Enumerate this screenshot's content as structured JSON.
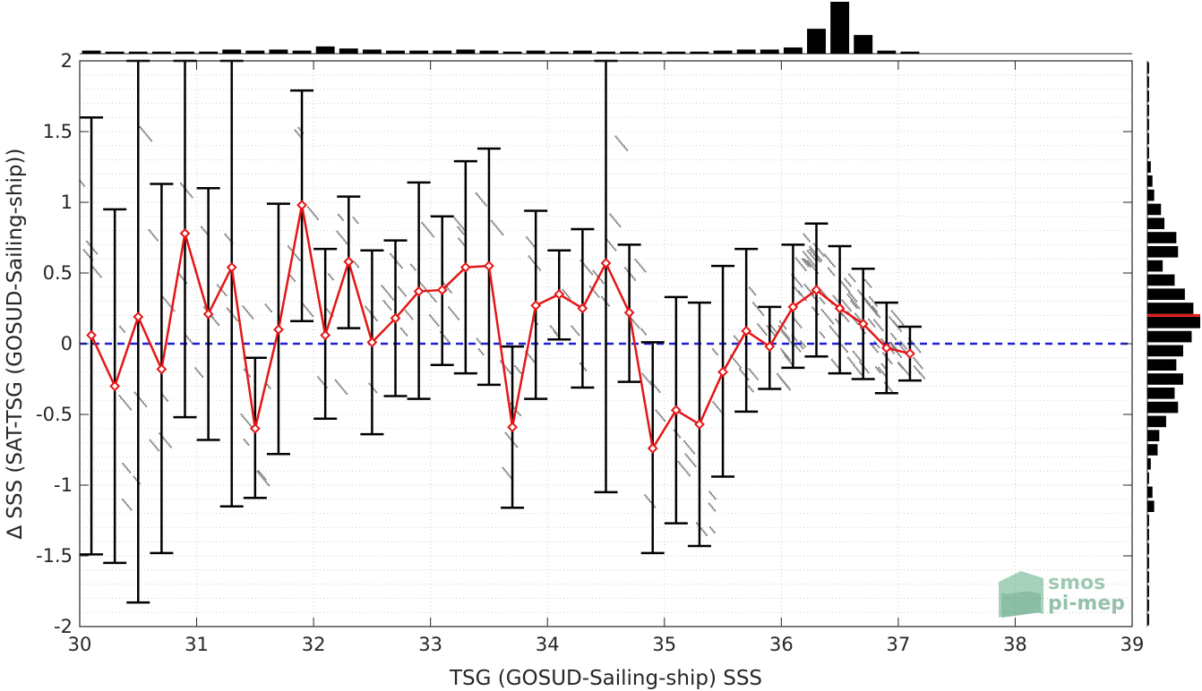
{
  "chart_data": {
    "type": "scatter",
    "xlabel": "TSG (GOSUD-Sailing-ship) SSS",
    "ylabel": "∆ SSS (SAT-TSG (GOSUD-Sailing-ship))",
    "xlim": [
      30,
      39
    ],
    "ylim": [
      -2,
      2
    ],
    "x_ticks": [
      "30",
      "31",
      "32",
      "33",
      "34",
      "35",
      "36",
      "37",
      "38",
      "39"
    ],
    "y_ticks": [
      "-2",
      "-1.5",
      "-1",
      "-0.5",
      "0",
      "0.5",
      "1",
      "1.5",
      "2"
    ],
    "grid": "dotted",
    "zero_line": {
      "y": 0,
      "style": "dashed",
      "color": "#1f1fd6"
    },
    "binned_stats": {
      "x": [
        30.1,
        30.3,
        30.5,
        30.7,
        30.9,
        31.1,
        31.3,
        31.5,
        31.7,
        31.9,
        32.1,
        32.3,
        32.5,
        32.7,
        32.9,
        33.1,
        33.3,
        33.5,
        33.7,
        33.9,
        34.1,
        34.3,
        34.5,
        34.7,
        34.9,
        35.1,
        35.3,
        35.5,
        35.7,
        35.9,
        36.1,
        36.3,
        36.5,
        36.7,
        36.9,
        37.1
      ],
      "mean": [
        0.06,
        -0.3,
        0.19,
        -0.18,
        0.78,
        0.21,
        0.54,
        -0.6,
        0.1,
        0.98,
        0.06,
        0.58,
        0.01,
        0.18,
        0.37,
        0.38,
        0.54,
        0.55,
        -0.59,
        0.27,
        0.35,
        0.25,
        0.57,
        0.22,
        -0.74,
        -0.47,
        -0.57,
        -0.2,
        0.09,
        -0.02,
        0.26,
        0.38,
        0.25,
        0.14,
        -0.03,
        -0.07
      ],
      "upper": [
        1.6,
        0.95,
        2.0,
        1.13,
        2.0,
        1.1,
        2.0,
        -0.1,
        0.99,
        1.79,
        0.67,
        1.04,
        0.66,
        0.73,
        1.14,
        0.9,
        1.29,
        1.38,
        -0.02,
        0.94,
        0.66,
        0.81,
        2.0,
        0.7,
        0.01,
        0.33,
        0.29,
        0.55,
        0.67,
        0.26,
        0.7,
        0.85,
        0.69,
        0.53,
        0.29,
        0.12
      ],
      "lower": [
        -1.49,
        -1.55,
        -1.83,
        -1.48,
        -0.52,
        -0.68,
        -1.15,
        -1.09,
        -0.78,
        0.16,
        -0.53,
        0.11,
        -0.64,
        -0.37,
        -0.39,
        -0.15,
        -0.21,
        -0.29,
        -1.16,
        -0.39,
        0.03,
        -0.31,
        -1.05,
        -0.27,
        -1.48,
        -1.27,
        -1.43,
        -0.94,
        -0.48,
        -0.32,
        -0.17,
        -0.09,
        -0.21,
        -0.25,
        -0.35,
        -0.26
      ],
      "mean_color": "#e51616",
      "bar_color": "#000000"
    },
    "scatter_color": "#808080",
    "x_histogram": {
      "centers": [
        30.1,
        30.3,
        30.5,
        30.7,
        30.9,
        31.1,
        31.3,
        31.5,
        31.7,
        31.9,
        32.1,
        32.3,
        32.5,
        32.7,
        32.9,
        33.1,
        33.3,
        33.5,
        33.7,
        33.9,
        34.1,
        34.3,
        34.5,
        34.7,
        34.9,
        35.1,
        35.3,
        35.5,
        35.7,
        35.9,
        36.1,
        36.3,
        36.5,
        36.7,
        36.9,
        37.1
      ],
      "counts": [
        3,
        2,
        2,
        2,
        2,
        2,
        4,
        3,
        4,
        3,
        7,
        5,
        4,
        3,
        3,
        3,
        4,
        3,
        2,
        3,
        2,
        3,
        2,
        2,
        2,
        2,
        2,
        3,
        4,
        4,
        6,
        24,
        50,
        18,
        3,
        2
      ]
    },
    "y_histogram": {
      "centers": [
        1.95,
        1.85,
        1.75,
        1.65,
        1.55,
        1.45,
        1.35,
        1.25,
        1.15,
        1.05,
        0.95,
        0.85,
        0.75,
        0.65,
        0.55,
        0.45,
        0.35,
        0.25,
        0.15,
        0.05,
        -0.05,
        -0.15,
        -0.25,
        -0.35,
        -0.45,
        -0.55,
        -0.65,
        -0.75,
        -0.85,
        -0.95,
        -1.05,
        -1.15,
        -1.25,
        -1.35,
        -1.45,
        -1.55,
        -1.65,
        -1.75,
        -1.85,
        -1.95
      ],
      "counts": [
        1,
        1,
        1,
        1,
        1,
        1,
        1,
        2,
        3,
        4,
        8,
        10,
        17,
        18,
        9,
        16,
        22,
        27,
        31,
        26,
        21,
        17,
        21,
        16,
        18,
        11,
        7,
        6,
        2,
        1,
        3,
        4,
        1,
        1,
        1,
        1,
        1,
        1,
        1,
        1
      ],
      "mean_y": 0.2,
      "mean_color": "#e51616"
    },
    "logo_text": [
      "smos",
      "pi-mep"
    ]
  }
}
